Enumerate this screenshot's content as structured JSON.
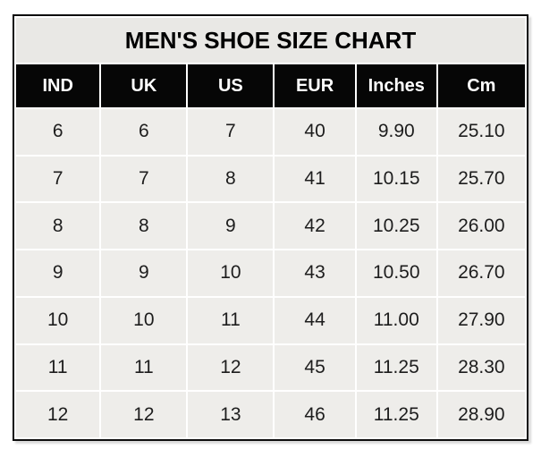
{
  "title": "MEN'S SHOE SIZE CHART",
  "colors": {
    "title_bg": "#e9e8e5",
    "header_bg": "#060606",
    "header_text": "#ffffff",
    "row_bg": "#eeedea",
    "cell_gap": "#ffffff",
    "outer_border": "#0d0d0d",
    "data_text": "#1d1d1d"
  },
  "chart_data": {
    "type": "table",
    "title": "MEN'S SHOE SIZE CHART",
    "columns": [
      "IND",
      "UK",
      "US",
      "EUR",
      "Inches",
      "Cm"
    ],
    "rows": [
      [
        "6",
        "6",
        "7",
        "40",
        "9.90",
        "25.10"
      ],
      [
        "7",
        "7",
        "8",
        "41",
        "10.15",
        "25.70"
      ],
      [
        "8",
        "8",
        "9",
        "42",
        "10.25",
        "26.00"
      ],
      [
        "9",
        "9",
        "10",
        "43",
        "10.50",
        "26.70"
      ],
      [
        "10",
        "10",
        "11",
        "44",
        "11.00",
        "27.90"
      ],
      [
        "11",
        "11",
        "12",
        "45",
        "11.25",
        "28.30"
      ],
      [
        "12",
        "12",
        "13",
        "46",
        "11.25",
        "28.90"
      ]
    ]
  }
}
